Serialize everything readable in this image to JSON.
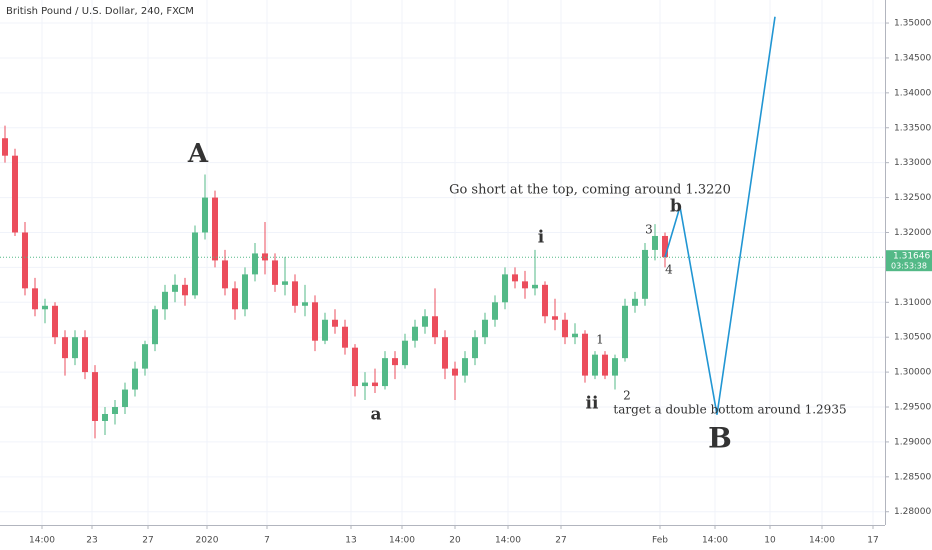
{
  "chart_data": {
    "type": "candlestick",
    "title": "British Pound / U.S. Dollar, 240, FXCM",
    "x": [
      0,
      1,
      2,
      3,
      4,
      5,
      6,
      7,
      8,
      9,
      10,
      11,
      12,
      13,
      14,
      15,
      16,
      17,
      18,
      19,
      20,
      21,
      22,
      23,
      24,
      25,
      26,
      27,
      28,
      29,
      30,
      31,
      32,
      33,
      34,
      35,
      36,
      37,
      38,
      39,
      40,
      41,
      42,
      43,
      44,
      45,
      46,
      47,
      48,
      49,
      50,
      51,
      52,
      53,
      54,
      55,
      56,
      57,
      58,
      59,
      60,
      61,
      62,
      63,
      64,
      65,
      66
    ],
    "open": [
      1.3335,
      1.331,
      1.32,
      1.312,
      1.309,
      1.3095,
      1.305,
      1.302,
      1.305,
      1.3,
      1.293,
      1.294,
      1.295,
      1.2975,
      1.3005,
      1.304,
      1.309,
      1.3115,
      1.3125,
      1.311,
      1.32,
      1.325,
      1.316,
      1.312,
      1.309,
      1.314,
      1.317,
      1.316,
      1.3125,
      1.313,
      1.3095,
      1.31,
      1.3045,
      1.3075,
      1.3065,
      1.3035,
      1.298,
      1.2985,
      1.298,
      1.302,
      1.301,
      1.3045,
      1.3065,
      1.308,
      1.305,
      1.3005,
      1.2995,
      1.302,
      1.305,
      1.3075,
      1.31,
      1.314,
      1.313,
      1.312,
      1.3125,
      1.308,
      1.3075,
      1.305,
      1.3055,
      1.2995,
      1.3025,
      1.2995,
      1.302,
      1.3095,
      1.3105,
      1.3175,
      1.3195
    ],
    "high": [
      1.3353,
      1.332,
      1.3215,
      1.3135,
      1.3105,
      1.31,
      1.306,
      1.306,
      1.306,
      1.301,
      1.295,
      1.296,
      1.2985,
      1.3015,
      1.3045,
      1.3095,
      1.3125,
      1.314,
      1.3135,
      1.321,
      1.3283,
      1.326,
      1.3175,
      1.313,
      1.315,
      1.3185,
      1.3215,
      1.317,
      1.3165,
      1.314,
      1.3125,
      1.311,
      1.3085,
      1.309,
      1.3075,
      1.304,
      1.3,
      1.3005,
      1.303,
      1.303,
      1.3055,
      1.3075,
      1.309,
      1.312,
      1.306,
      1.3015,
      1.303,
      1.306,
      1.3085,
      1.311,
      1.315,
      1.315,
      1.3145,
      1.3175,
      1.313,
      1.3105,
      1.3085,
      1.307,
      1.306,
      1.303,
      1.303,
      1.3025,
      1.3105,
      1.3115,
      1.3185,
      1.3212,
      1.32
    ],
    "low": [
      1.33,
      1.3195,
      1.311,
      1.308,
      1.307,
      1.304,
      1.2995,
      1.301,
      1.299,
      1.2905,
      1.291,
      1.2925,
      1.294,
      1.2965,
      1.2995,
      1.303,
      1.3075,
      1.31,
      1.3095,
      1.3105,
      1.319,
      1.315,
      1.311,
      1.3075,
      1.308,
      1.313,
      1.314,
      1.3115,
      1.311,
      1.3085,
      1.308,
      1.303,
      1.304,
      1.3055,
      1.3025,
      1.2965,
      1.296,
      1.297,
      1.2975,
      1.299,
      1.3005,
      1.3035,
      1.3055,
      1.304,
      1.299,
      1.296,
      1.2985,
      1.301,
      1.304,
      1.3065,
      1.309,
      1.312,
      1.3105,
      1.311,
      1.307,
      1.306,
      1.304,
      1.304,
      1.2985,
      1.299,
      1.299,
      1.2975,
      1.3015,
      1.3085,
      1.3095,
      1.316,
      1.315
    ],
    "close": [
      1.331,
      1.32,
      1.312,
      1.309,
      1.3095,
      1.305,
      1.302,
      1.305,
      1.3,
      1.293,
      1.294,
      1.295,
      1.2975,
      1.3005,
      1.304,
      1.309,
      1.3115,
      1.3125,
      1.311,
      1.32,
      1.325,
      1.316,
      1.312,
      1.309,
      1.314,
      1.317,
      1.316,
      1.3125,
      1.313,
      1.3095,
      1.31,
      1.3045,
      1.3075,
      1.3065,
      1.3035,
      1.298,
      1.2985,
      1.298,
      1.302,
      1.301,
      1.3045,
      1.3065,
      1.308,
      1.305,
      1.3005,
      1.2995,
      1.302,
      1.305,
      1.3075,
      1.31,
      1.314,
      1.313,
      1.312,
      1.3125,
      1.308,
      1.3075,
      1.305,
      1.3055,
      1.2995,
      1.3025,
      1.2995,
      1.302,
      1.3095,
      1.3105,
      1.3175,
      1.3195,
      1.31646
    ],
    "up_color": "#53b987",
    "down_color": "#eb4d5c",
    "projection": {
      "color": "#2196d3",
      "x": [
        66,
        67.5,
        71.2,
        77
      ],
      "y": [
        1.31646,
        1.3237,
        1.2939,
        1.3509
      ]
    },
    "last_price": 1.31646,
    "countdown": "03:53:38",
    "annotations": [
      "A",
      "a",
      "i",
      "ii",
      "1",
      "2",
      "3",
      "4",
      "b",
      "B",
      "Go short at the top, coming around 1.3220",
      "target a double bottom around 1.2935"
    ],
    "xlim": [
      -0.5,
      88
    ],
    "ylim": [
      1.2781,
      1.3533
    ],
    "xticks": [
      {
        "value": 3.7,
        "label": "14:00"
      },
      {
        "value": 8.7,
        "label": "23"
      },
      {
        "value": 14.3,
        "label": "27"
      },
      {
        "value": 20.2,
        "label": "2020"
      },
      {
        "value": 26.2,
        "label": "7"
      },
      {
        "value": 34.6,
        "label": "13"
      },
      {
        "value": 39.7,
        "label": "14:00"
      },
      {
        "value": 45,
        "label": "20"
      },
      {
        "value": 50.3,
        "label": "14:00"
      },
      {
        "value": 55.6,
        "label": "27"
      },
      {
        "value": 65.5,
        "label": "Feb"
      },
      {
        "value": 71,
        "label": "14:00"
      },
      {
        "value": 76.5,
        "label": "10"
      },
      {
        "value": 81.7,
        "label": "14:00"
      },
      {
        "value": 86.8,
        "label": "17"
      }
    ],
    "yticks": [
      {
        "value": 1.28,
        "label": "1.28000"
      },
      {
        "value": 1.285,
        "label": "1.28500"
      },
      {
        "value": 1.29,
        "label": "1.29000"
      },
      {
        "value": 1.295,
        "label": "1.29500"
      },
      {
        "value": 1.3,
        "label": "1.30000"
      },
      {
        "value": 1.305,
        "label": "1.30500"
      },
      {
        "value": 1.31,
        "label": "1.31000"
      },
      {
        "value": 1.315,
        "label": "1.31500"
      },
      {
        "value": 1.32,
        "label": "1.32000"
      },
      {
        "value": 1.325,
        "label": "1.32500"
      },
      {
        "value": 1.33,
        "label": "1.33000"
      },
      {
        "value": 1.335,
        "label": "1.33500"
      },
      {
        "value": 1.34,
        "label": "1.34000"
      },
      {
        "value": 1.345,
        "label": "1.34500"
      },
      {
        "value": 1.35,
        "label": "1.35000"
      }
    ],
    "grid": true
  }
}
